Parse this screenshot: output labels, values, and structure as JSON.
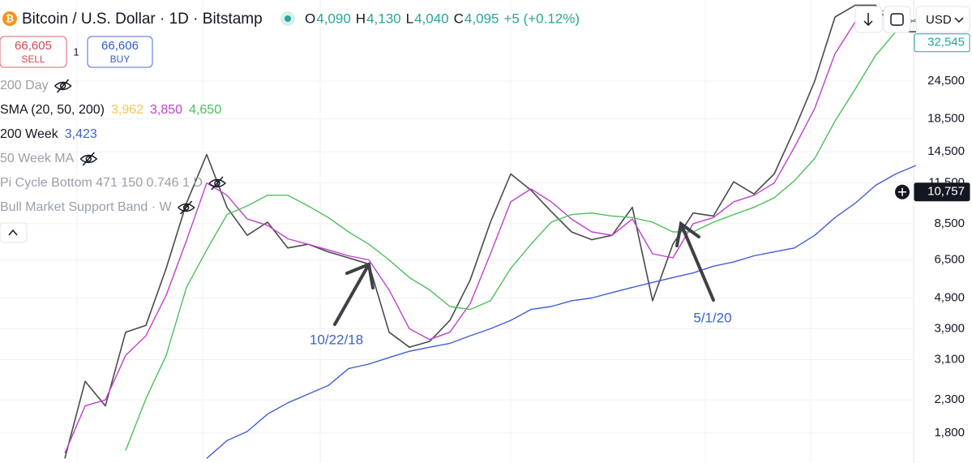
{
  "header": {
    "title": "Bitcoin / U.S. Dollar · 1D · Bitstamp",
    "ohlc": [
      {
        "key": "O",
        "value": "4,090"
      },
      {
        "key": "H",
        "value": "4,130"
      },
      {
        "key": "L",
        "value": "4,040"
      },
      {
        "key": "C",
        "value": "4,095"
      }
    ],
    "change": "+5 (+0.12%)",
    "sell": {
      "price": "66,605",
      "label": "SELL"
    },
    "spread": "1",
    "buy": {
      "price": "66,606",
      "label": "BUY"
    },
    "currency": "USD"
  },
  "indicators": [
    {
      "name": "200 Day",
      "hidden": true
    },
    {
      "name": "SMA (20, 50, 200)",
      "values": [
        {
          "text": "3,962",
          "color": "#f2c84b"
        },
        {
          "text": "3,850",
          "color": "#c03fd0"
        },
        {
          "text": "4,650",
          "color": "#4cbf5a"
        }
      ]
    },
    {
      "name": "200 Week",
      "values": [
        {
          "text": "3,423",
          "color": "#3f5fd8"
        }
      ]
    },
    {
      "name": "50 Week MA",
      "hidden": true
    },
    {
      "name": "Pi Cycle Bottom 471 150 0.746 1 D",
      "hidden": true
    },
    {
      "name": "Bull Market Support Band · W",
      "hidden": true
    }
  ],
  "chart_data": {
    "type": "line",
    "log_scale": true,
    "grid": true,
    "ylim": [
      1440,
      44700
    ],
    "yticks": [
      {
        "value": 1800,
        "label": "1,800"
      },
      {
        "value": 2300,
        "label": "2,300"
      },
      {
        "value": 3100,
        "label": "3,100"
      },
      {
        "value": 3900,
        "label": "3,900"
      },
      {
        "value": 4900,
        "label": "4,900"
      },
      {
        "value": 6500,
        "label": "6,500"
      },
      {
        "value": 8500,
        "label": "8,500"
      },
      {
        "value": 11500,
        "label": "11,500"
      },
      {
        "value": 14500,
        "label": "14,500"
      },
      {
        "value": 18500,
        "label": "18,500"
      },
      {
        "value": 24500,
        "label": "24,500"
      }
    ],
    "price_markers": [
      {
        "value": 10757,
        "label": "10,757",
        "color": "#131722",
        "text_color": "#ffffff"
      },
      {
        "value": 32545,
        "label": "32,545",
        "color": "#ffffff",
        "text_color": "#26a69a"
      }
    ],
    "series": [
      {
        "name": "Price",
        "color": "#4a4a4a",
        "width": 1.6,
        "values": [
          1490,
          2640,
          2200,
          3800,
          4000,
          6100,
          9900,
          14200,
          9600,
          7800,
          8600,
          7100,
          7300,
          6900,
          6600,
          6300,
          3800,
          3400,
          3550,
          4150,
          5600,
          8600,
          12300,
          10900,
          9300,
          8000,
          7550,
          7800,
          9600,
          4800,
          7300,
          9200,
          9000,
          11600,
          10600,
          12300,
          17100,
          24500,
          39400,
          43000,
          43000,
          35300,
          35300
        ]
      },
      {
        "name": "SMA 50",
        "color": "#c03fd0",
        "width": 1.4,
        "values": [
          1550,
          2200,
          2300,
          3200,
          3700,
          5000,
          7500,
          11500,
          10500,
          8800,
          8400,
          7600,
          7300,
          7000,
          6700,
          6500,
          5200,
          3900,
          3600,
          3800,
          4700,
          6800,
          10000,
          11000,
          10000,
          8800,
          8000,
          7800,
          8800,
          6800,
          6600,
          8500,
          8900,
          10000,
          10500,
          11500,
          15000,
          20000,
          30000,
          38000,
          42000,
          40000,
          38000
        ]
      },
      {
        "name": "SMA 200",
        "color": "#4cbf5a",
        "width": 1.4,
        "values": [
          null,
          null,
          null,
          1580,
          2320,
          3200,
          5300,
          7000,
          9100,
          9700,
          10500,
          10500,
          9700,
          8900,
          8000,
          7300,
          6500,
          5700,
          5200,
          4600,
          4500,
          4800,
          6100,
          7300,
          8600,
          9100,
          9200,
          9000,
          8900,
          8600,
          8000,
          8000,
          8600,
          9100,
          9600,
          10300,
          11700,
          13800,
          18200,
          23100,
          29600,
          35300,
          38800
        ]
      },
      {
        "name": "200 Week",
        "color": "#3f5fd8",
        "width": 1.4,
        "values": [
          null,
          null,
          null,
          null,
          null,
          null,
          null,
          1490,
          1700,
          1820,
          2070,
          2250,
          2400,
          2560,
          2900,
          3000,
          3150,
          3300,
          3400,
          3500,
          3700,
          3900,
          4150,
          4500,
          4600,
          4800,
          4900,
          5100,
          5300,
          5500,
          5700,
          5900,
          6200,
          6400,
          6700,
          6900,
          7100,
          7800,
          8900,
          9900,
          11300,
          12300,
          13100
        ]
      }
    ],
    "annotations": [
      {
        "text": "10/22/18",
        "color": "#3a63c9"
      },
      {
        "text": "5/1/20",
        "color": "#3a63c9"
      }
    ]
  }
}
